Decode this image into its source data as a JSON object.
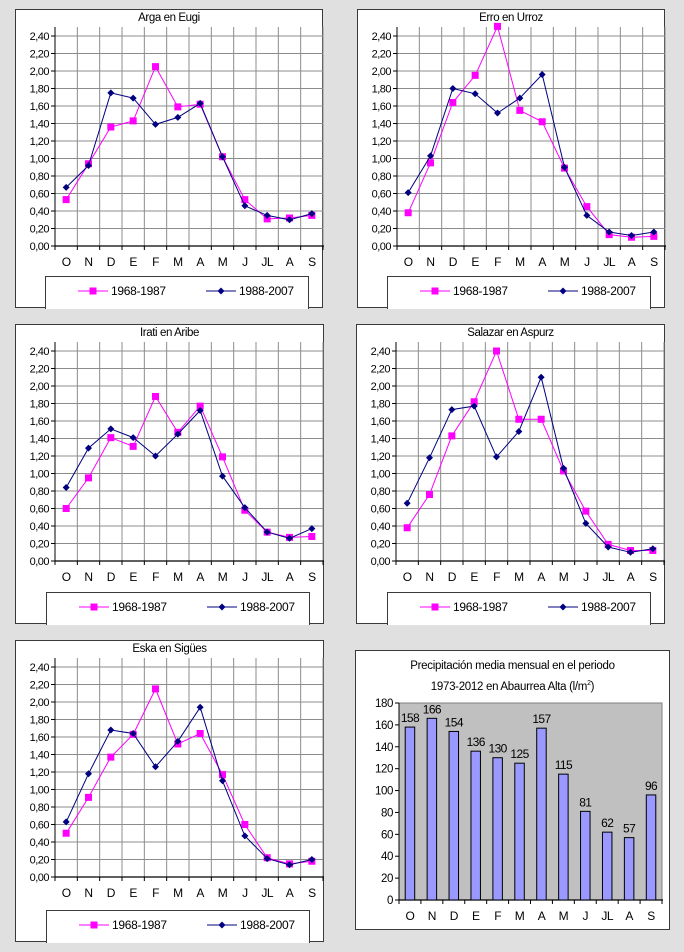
{
  "legend": {
    "series1": "1968-1987",
    "series2": "1988-2007"
  },
  "colors": {
    "series1": "#ff00ff",
    "series2": "#000080",
    "bar_fill": "#9999ff",
    "bar_plot_bg": "#c0c0c0",
    "background": "#e0e0e0"
  },
  "chart_data": [
    {
      "type": "line",
      "title": "Arga en Eugi",
      "categories": [
        "O",
        "N",
        "D",
        "E",
        "F",
        "M",
        "A",
        "M",
        "J",
        "JL",
        "A",
        "S"
      ],
      "yticks": [
        "0,00",
        "0,20",
        "0,40",
        "0,60",
        "0,80",
        "1,00",
        "1,20",
        "1,40",
        "1,60",
        "1,80",
        "2,00",
        "2,20",
        "2,40"
      ],
      "ylim": [
        0,
        2.4
      ],
      "grid": true,
      "legend_position": "bottom",
      "series": [
        {
          "name": "1968-1987",
          "marker": "square",
          "values": [
            0.53,
            0.94,
            1.36,
            1.43,
            2.05,
            1.59,
            1.62,
            1.02,
            0.53,
            0.31,
            0.32,
            0.35
          ]
        },
        {
          "name": "1988-2007",
          "marker": "diamond",
          "values": [
            0.67,
            0.92,
            1.75,
            1.69,
            1.39,
            1.47,
            1.63,
            1.02,
            0.46,
            0.35,
            0.3,
            0.37
          ]
        }
      ]
    },
    {
      "type": "line",
      "title": "Erro en Urroz",
      "categories": [
        "O",
        "N",
        "D",
        "E",
        "F",
        "M",
        "A",
        "M",
        "J",
        "JL",
        "A",
        "S"
      ],
      "yticks": [
        "0,00",
        "0,20",
        "0,40",
        "0,60",
        "0,80",
        "1,00",
        "1,20",
        "1,40",
        "1,60",
        "1,80",
        "2,00",
        "2,20",
        "2,40"
      ],
      "ylim": [
        0,
        2.4
      ],
      "grid": true,
      "legend_position": "bottom",
      "series": [
        {
          "name": "1968-1987",
          "marker": "square",
          "values": [
            0.38,
            0.95,
            1.64,
            1.95,
            2.51,
            1.55,
            1.42,
            0.89,
            0.45,
            0.13,
            0.1,
            0.11
          ]
        },
        {
          "name": "1988-2007",
          "marker": "diamond",
          "values": [
            0.61,
            1.03,
            1.8,
            1.74,
            1.52,
            1.69,
            1.96,
            0.9,
            0.35,
            0.16,
            0.12,
            0.16
          ]
        }
      ]
    },
    {
      "type": "line",
      "title": "Irati en Aribe",
      "categories": [
        "O",
        "N",
        "D",
        "E",
        "F",
        "M",
        "A",
        "M",
        "J",
        "JL",
        "A",
        "S"
      ],
      "yticks": [
        "0,00",
        "0,20",
        "0,40",
        "0,60",
        "0,80",
        "1,00",
        "1,20",
        "1,40",
        "1,60",
        "1,80",
        "2,00",
        "2,20",
        "2,40"
      ],
      "ylim": [
        0,
        2.4
      ],
      "grid": true,
      "legend_position": "bottom",
      "series": [
        {
          "name": "1968-1987",
          "marker": "square",
          "values": [
            0.6,
            0.95,
            1.41,
            1.31,
            1.88,
            1.47,
            1.77,
            1.19,
            0.58,
            0.33,
            0.27,
            0.28
          ]
        },
        {
          "name": "1988-2007",
          "marker": "diamond",
          "values": [
            0.84,
            1.29,
            1.51,
            1.41,
            1.2,
            1.45,
            1.72,
            0.97,
            0.61,
            0.33,
            0.26,
            0.37
          ]
        }
      ]
    },
    {
      "type": "line",
      "title": "Salazar en Aspurz",
      "categories": [
        "O",
        "N",
        "D",
        "E",
        "F",
        "M",
        "A",
        "M",
        "J",
        "JL",
        "A",
        "S"
      ],
      "yticks": [
        "0,00",
        "0,20",
        "0,40",
        "0,60",
        "0,80",
        "1,00",
        "1,20",
        "1,40",
        "1,60",
        "1,80",
        "2,00",
        "2,20",
        "2,40"
      ],
      "ylim": [
        0,
        2.4
      ],
      "grid": true,
      "legend_position": "bottom",
      "series": [
        {
          "name": "1968-1987",
          "marker": "square",
          "values": [
            0.38,
            0.76,
            1.43,
            1.82,
            2.4,
            1.62,
            1.62,
            1.03,
            0.57,
            0.19,
            0.12,
            0.12
          ]
        },
        {
          "name": "1988-2007",
          "marker": "diamond",
          "values": [
            0.66,
            1.18,
            1.73,
            1.77,
            1.19,
            1.48,
            2.1,
            1.06,
            0.43,
            0.16,
            0.1,
            0.14
          ]
        }
      ]
    },
    {
      "type": "line",
      "title": "Eska en Sigües",
      "categories": [
        "O",
        "N",
        "D",
        "E",
        "F",
        "M",
        "A",
        "M",
        "J",
        "JL",
        "A",
        "S"
      ],
      "yticks": [
        "0,00",
        "0,20",
        "0,40",
        "0,60",
        "0,80",
        "1,00",
        "1,20",
        "1,40",
        "1,60",
        "1,80",
        "2,00",
        "2,20",
        "2,40"
      ],
      "ylim": [
        0,
        2.4
      ],
      "grid": true,
      "legend_position": "bottom",
      "series": [
        {
          "name": "1968-1987",
          "marker": "square",
          "values": [
            0.5,
            0.91,
            1.37,
            1.63,
            2.15,
            1.52,
            1.64,
            1.17,
            0.6,
            0.22,
            0.15,
            0.18
          ]
        },
        {
          "name": "1988-2007",
          "marker": "diamond",
          "values": [
            0.63,
            1.18,
            1.68,
            1.64,
            1.26,
            1.55,
            1.94,
            1.1,
            0.47,
            0.21,
            0.14,
            0.2
          ]
        }
      ]
    },
    {
      "type": "bar",
      "title_line1": "Precipitación media mensual en el periodo",
      "title_line2": "1973-2012 en Abaurrea Alta (l/m",
      "title_sup": "2",
      "title_end": ")",
      "categories": [
        "O",
        "N",
        "D",
        "E",
        "F",
        "M",
        "A",
        "M",
        "J",
        "JL",
        "A",
        "S"
      ],
      "values": [
        158,
        166,
        154,
        136,
        130,
        125,
        157,
        115,
        81,
        62,
        57,
        96
      ],
      "data_labels": [
        "158",
        "166",
        "154",
        "136",
        "130",
        "125",
        "157",
        "115",
        "81",
        "62",
        "57",
        "96"
      ],
      "yticks": [
        "0",
        "20",
        "40",
        "60",
        "80",
        "100",
        "120",
        "140",
        "160",
        "180"
      ],
      "ylim": [
        0,
        180
      ],
      "grid": false,
      "legend_position": "none"
    }
  ]
}
